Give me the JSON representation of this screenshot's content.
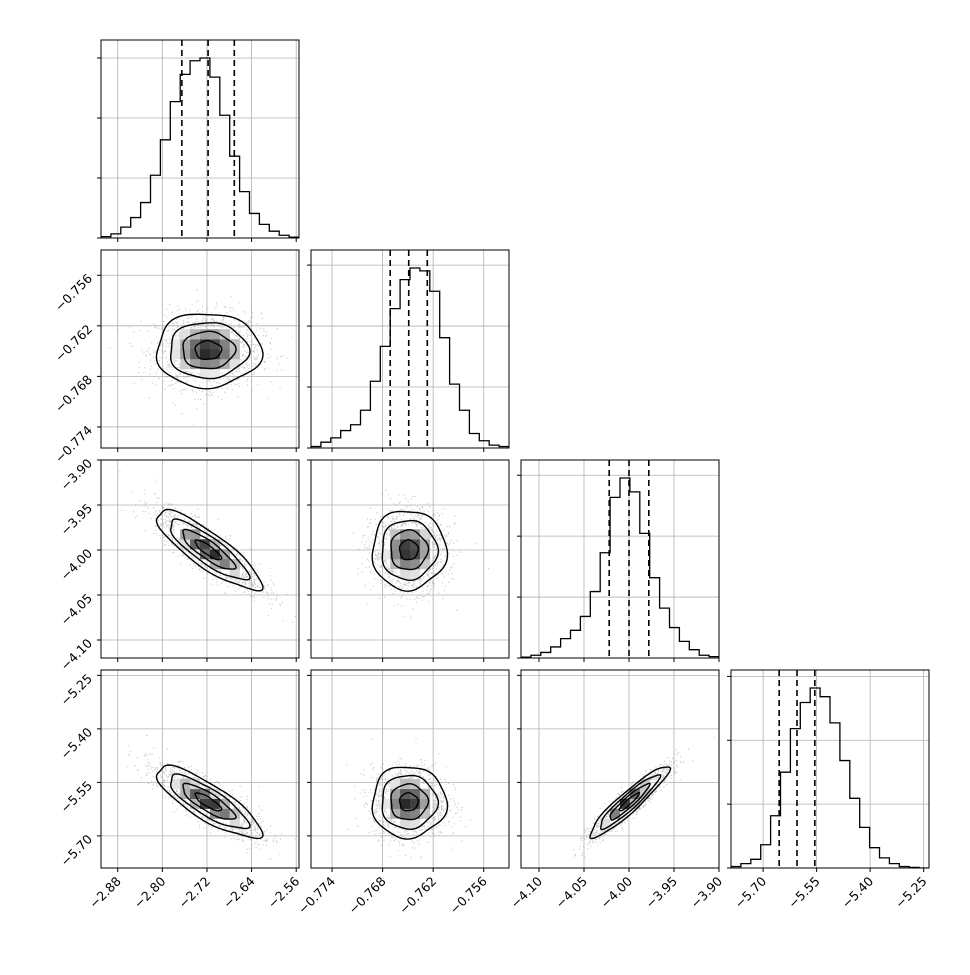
{
  "chart_data": {
    "type": "corner",
    "title": "",
    "style": {
      "line_color": "#000000",
      "grid_color": "#b0b0b0",
      "point_color": "#9a9a9a",
      "background": "#ffffff"
    },
    "parameters": [
      {
        "index": 0,
        "range": [
          -2.91,
          -2.555
        ],
        "ticks": [
          -2.88,
          -2.8,
          -2.72,
          -2.64,
          -2.56
        ],
        "tick_labels": [
          "−2.88",
          "−2.80",
          "−2.72",
          "−2.64",
          "−2.56"
        ],
        "quantiles": [
          -2.765,
          -2.718,
          -2.671
        ],
        "histogram": [
          0.5,
          1.5,
          4,
          7.5,
          13,
          23,
          36,
          50,
          60,
          65,
          66,
          59,
          45,
          30,
          17,
          9,
          5,
          2.5,
          1,
          0.3
        ],
        "hist_ticks": [
          0,
          22,
          44,
          66
        ],
        "center": -2.718,
        "sigma": 0.047
      },
      {
        "index": 1,
        "range": [
          -0.7765,
          -0.753
        ],
        "ticks": [
          -0.774,
          -0.768,
          -0.762,
          -0.756
        ],
        "tick_labels": [
          "−0.774",
          "−0.768",
          "−0.762",
          "−0.756"
        ],
        "quantiles": [
          -0.7671,
          -0.7649,
          -0.7627
        ],
        "histogram": [
          0.5,
          2,
          3.5,
          6,
          8,
          13,
          23,
          35,
          48,
          58,
          62,
          61,
          54,
          38,
          22,
          13,
          5,
          2.5,
          1,
          0.5
        ],
        "hist_ticks": [
          0,
          21,
          42,
          63
        ],
        "center": -0.7649,
        "sigma": 0.0022
      },
      {
        "index": 2,
        "range": [
          -4.12,
          -3.9
        ],
        "ticks": [
          -4.1,
          -4.05,
          -4.0,
          -3.95,
          -3.9
        ],
        "tick_labels": [
          "−4.10",
          "−4.05",
          "−4.00",
          "−3.95",
          "−3.90"
        ],
        "quantiles": [
          -4.022,
          -4.0,
          -3.978
        ],
        "histogram": [
          0.3,
          1,
          2,
          4,
          7,
          10,
          15,
          24,
          38,
          58,
          65,
          60,
          45,
          29,
          18,
          11,
          6,
          3,
          1,
          0.5
        ],
        "hist_ticks": [
          0,
          22,
          44,
          66
        ],
        "center": -4.0,
        "sigma": 0.022
      },
      {
        "index": 3,
        "range": [
          -5.79,
          -5.235
        ],
        "ticks": [
          -5.7,
          -5.55,
          -5.4,
          -5.25
        ],
        "tick_labels": [
          "−5.70",
          "−5.55",
          "−5.40",
          "−5.25"
        ],
        "quantiles": [
          -5.655,
          -5.605,
          -5.555
        ],
        "histogram": [
          0.5,
          1.5,
          3,
          8,
          18,
          33,
          48,
          57,
          62,
          59,
          50,
          37,
          24,
          14,
          7,
          3.5,
          1.5,
          0.5,
          0.2,
          0
        ],
        "hist_ticks": [
          0,
          22,
          44,
          66
        ],
        "center": -5.605,
        "sigma": 0.05
      }
    ],
    "correlations": [
      {
        "pair": [
          0,
          1
        ],
        "rho": 0.0
      },
      {
        "pair": [
          0,
          2
        ],
        "rho": -0.85
      },
      {
        "pair": [
          1,
          2
        ],
        "rho": 0.0
      },
      {
        "pair": [
          0,
          3
        ],
        "rho": -0.82
      },
      {
        "pair": [
          1,
          3
        ],
        "rho": 0.0
      },
      {
        "pair": [
          2,
          3
        ],
        "rho": 0.93
      }
    ],
    "contour_levels_sigma": [
      0.5,
      1.0,
      1.5,
      2.0
    ],
    "xlabels": [
      "",
      "",
      "",
      ""
    ],
    "ylabels": [
      "",
      "",
      "",
      ""
    ]
  }
}
